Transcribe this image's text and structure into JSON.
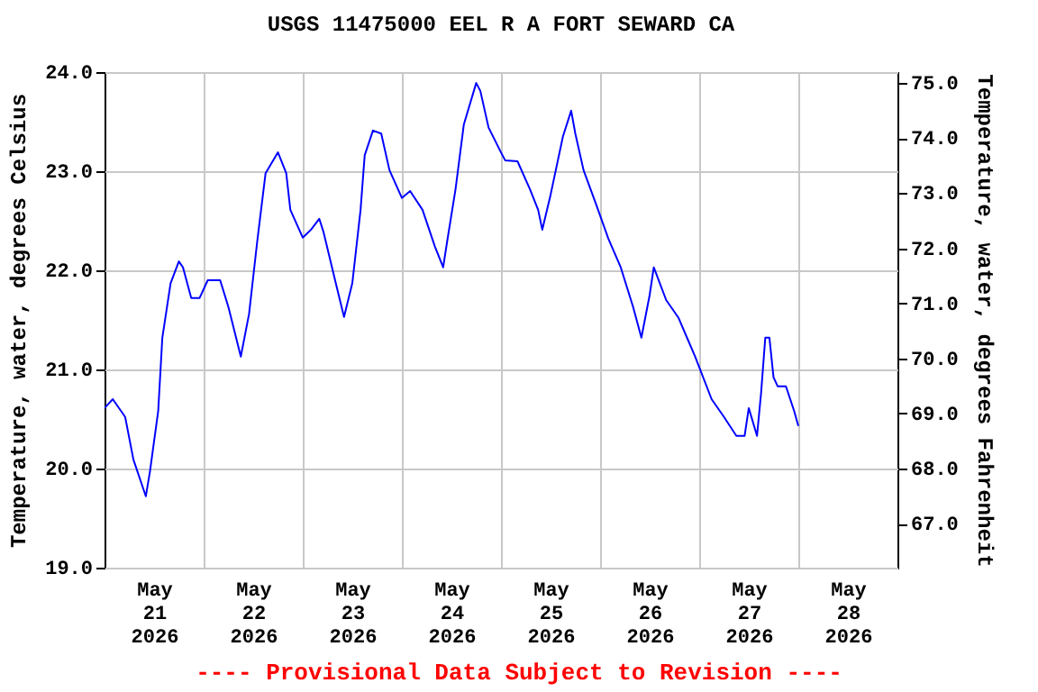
{
  "chart_data": {
    "type": "line",
    "title": "USGS 11475000 EEL R A FORT SEWARD CA",
    "ylabel": "Temperature, water, degrees Celsius",
    "y2label": "Temperature, water, degrees Fahrenheit",
    "annotations": [
      "---- Provisional Data Subject to Revision ----"
    ],
    "x": [
      "2026-05-21T00:00",
      "2026-05-21T02:00",
      "2026-05-21T05:00",
      "2026-05-21T07:00",
      "2026-05-21T10:00",
      "2026-05-21T11:00",
      "2026-05-21T13:00",
      "2026-05-21T14:00",
      "2026-05-21T16:00",
      "2026-05-21T18:00",
      "2026-05-21T19:00",
      "2026-05-21T21:00",
      "2026-05-21T23:00",
      "2026-05-22T01:00",
      "2026-05-22T04:00",
      "2026-05-22T06:00",
      "2026-05-22T09:00",
      "2026-05-22T11:00",
      "2026-05-22T13:00",
      "2026-05-22T15:00",
      "2026-05-22T18:00",
      "2026-05-22T20:00",
      "2026-05-22T21:00",
      "2026-05-23T00:00",
      "2026-05-23T02:00",
      "2026-05-23T04:00",
      "2026-05-23T05:00",
      "2026-05-23T08:00",
      "2026-05-23T10:00",
      "2026-05-23T12:00",
      "2026-05-23T14:00",
      "2026-05-23T15:00",
      "2026-05-23T17:00",
      "2026-05-23T19:00",
      "2026-05-23T21:00",
      "2026-05-24T00:00",
      "2026-05-24T02:00",
      "2026-05-24T05:00",
      "2026-05-24T08:00",
      "2026-05-24T10:00",
      "2026-05-24T11:00",
      "2026-05-24T13:00",
      "2026-05-24T15:00",
      "2026-05-24T18:00",
      "2026-05-24T19:00",
      "2026-05-24T21:00",
      "2026-05-25T00:00",
      "2026-05-25T01:00",
      "2026-05-25T04:00",
      "2026-05-25T07:00",
      "2026-05-25T09:00",
      "2026-05-25T10:00",
      "2026-05-25T12:00",
      "2026-05-25T15:00",
      "2026-05-25T17:00",
      "2026-05-25T18:00",
      "2026-05-25T20:00",
      "2026-05-25T23:00",
      "2026-05-26T02:00",
      "2026-05-26T05:00",
      "2026-05-26T08:00",
      "2026-05-26T10:00",
      "2026-05-26T12:00",
      "2026-05-26T13:00",
      "2026-05-26T16:00",
      "2026-05-26T19:00",
      "2026-05-26T23:00",
      "2026-05-27T03:00",
      "2026-05-27T06:00",
      "2026-05-27T09:00",
      "2026-05-27T11:00",
      "2026-05-27T12:00",
      "2026-05-27T14:00",
      "2026-05-27T15:00",
      "2026-05-27T16:00",
      "2026-05-27T17:00",
      "2026-05-27T18:00",
      "2026-05-27T19:00",
      "2026-05-27T21:00",
      "2026-05-27T23:00",
      "2026-05-28T00:00"
    ],
    "series": [
      {
        "color": "#0000ff",
        "values": [
          20.61,
          20.7,
          20.52,
          20.09,
          19.72,
          19.97,
          20.58,
          21.32,
          21.87,
          22.09,
          22.03,
          21.72,
          21.72,
          21.9,
          21.9,
          21.63,
          21.13,
          21.56,
          22.3,
          22.98,
          23.19,
          22.98,
          22.61,
          22.33,
          22.41,
          22.52,
          22.39,
          21.87,
          21.53,
          21.87,
          22.61,
          23.16,
          23.41,
          23.38,
          23.01,
          22.73,
          22.8,
          22.61,
          22.24,
          22.03,
          22.3,
          22.82,
          23.47,
          23.89,
          23.81,
          23.44,
          23.19,
          23.11,
          23.1,
          22.82,
          22.61,
          22.41,
          22.76,
          23.35,
          23.61,
          23.38,
          23.01,
          22.67,
          22.32,
          22.03,
          21.63,
          21.32,
          21.75,
          22.03,
          21.7,
          21.52,
          21.13,
          20.7,
          20.52,
          20.33,
          20.33,
          20.61,
          20.33,
          20.77,
          21.32,
          21.32,
          20.92,
          20.83,
          20.83,
          20.58,
          20.43
        ]
      }
    ],
    "xlim": [
      "2026-05-21T00:00",
      "2026-05-29T00:00"
    ],
    "xticks": [
      {
        "value": "2026-05-21T12:00",
        "label": "May\n21\n2026"
      },
      {
        "value": "2026-05-22T00:00",
        "label": null
      },
      {
        "value": "2026-05-22T12:00",
        "label": "May\n22\n2026"
      },
      {
        "value": "2026-05-23T00:00",
        "label": null
      },
      {
        "value": "2026-05-23T12:00",
        "label": "May\n23\n2026"
      },
      {
        "value": "2026-05-24T00:00",
        "label": null
      },
      {
        "value": "2026-05-24T12:00",
        "label": "May\n24\n2026"
      },
      {
        "value": "2026-05-25T00:00",
        "label": null
      },
      {
        "value": "2026-05-25T12:00",
        "label": "May\n25\n2026"
      },
      {
        "value": "2026-05-26T00:00",
        "label": null
      },
      {
        "value": "2026-05-26T12:00",
        "label": "May\n26\n2026"
      },
      {
        "value": "2026-05-27T00:00",
        "label": null
      },
      {
        "value": "2026-05-27T12:00",
        "label": "May\n27\n2026"
      },
      {
        "value": "2026-05-28T00:00",
        "label": null
      },
      {
        "value": "2026-05-28T12:00",
        "label": "May\n28\n2026"
      }
    ],
    "ylim": [
      19,
      24
    ],
    "yticks": [
      {
        "value": 19,
        "label": "19.0"
      },
      {
        "value": 20,
        "label": "20.0"
      },
      {
        "value": 21,
        "label": "21.0"
      },
      {
        "value": 22,
        "label": "22.0"
      },
      {
        "value": 23,
        "label": "23.0"
      },
      {
        "value": 24,
        "label": "24.0"
      }
    ],
    "y2lim": [
      66.2,
      75.2
    ],
    "y2ticks": [
      {
        "value": 67,
        "label": "67.0"
      },
      {
        "value": 68,
        "label": "68.0"
      },
      {
        "value": 69,
        "label": "69.0"
      },
      {
        "value": 70,
        "label": "70.0"
      },
      {
        "value": 71,
        "label": "71.0"
      },
      {
        "value": 72,
        "label": "72.0"
      },
      {
        "value": 73,
        "label": "73.0"
      },
      {
        "value": 74,
        "label": "74.0"
      },
      {
        "value": 75,
        "label": "75.0"
      }
    ],
    "grid": true,
    "marker": "none",
    "line_style": "solid"
  }
}
